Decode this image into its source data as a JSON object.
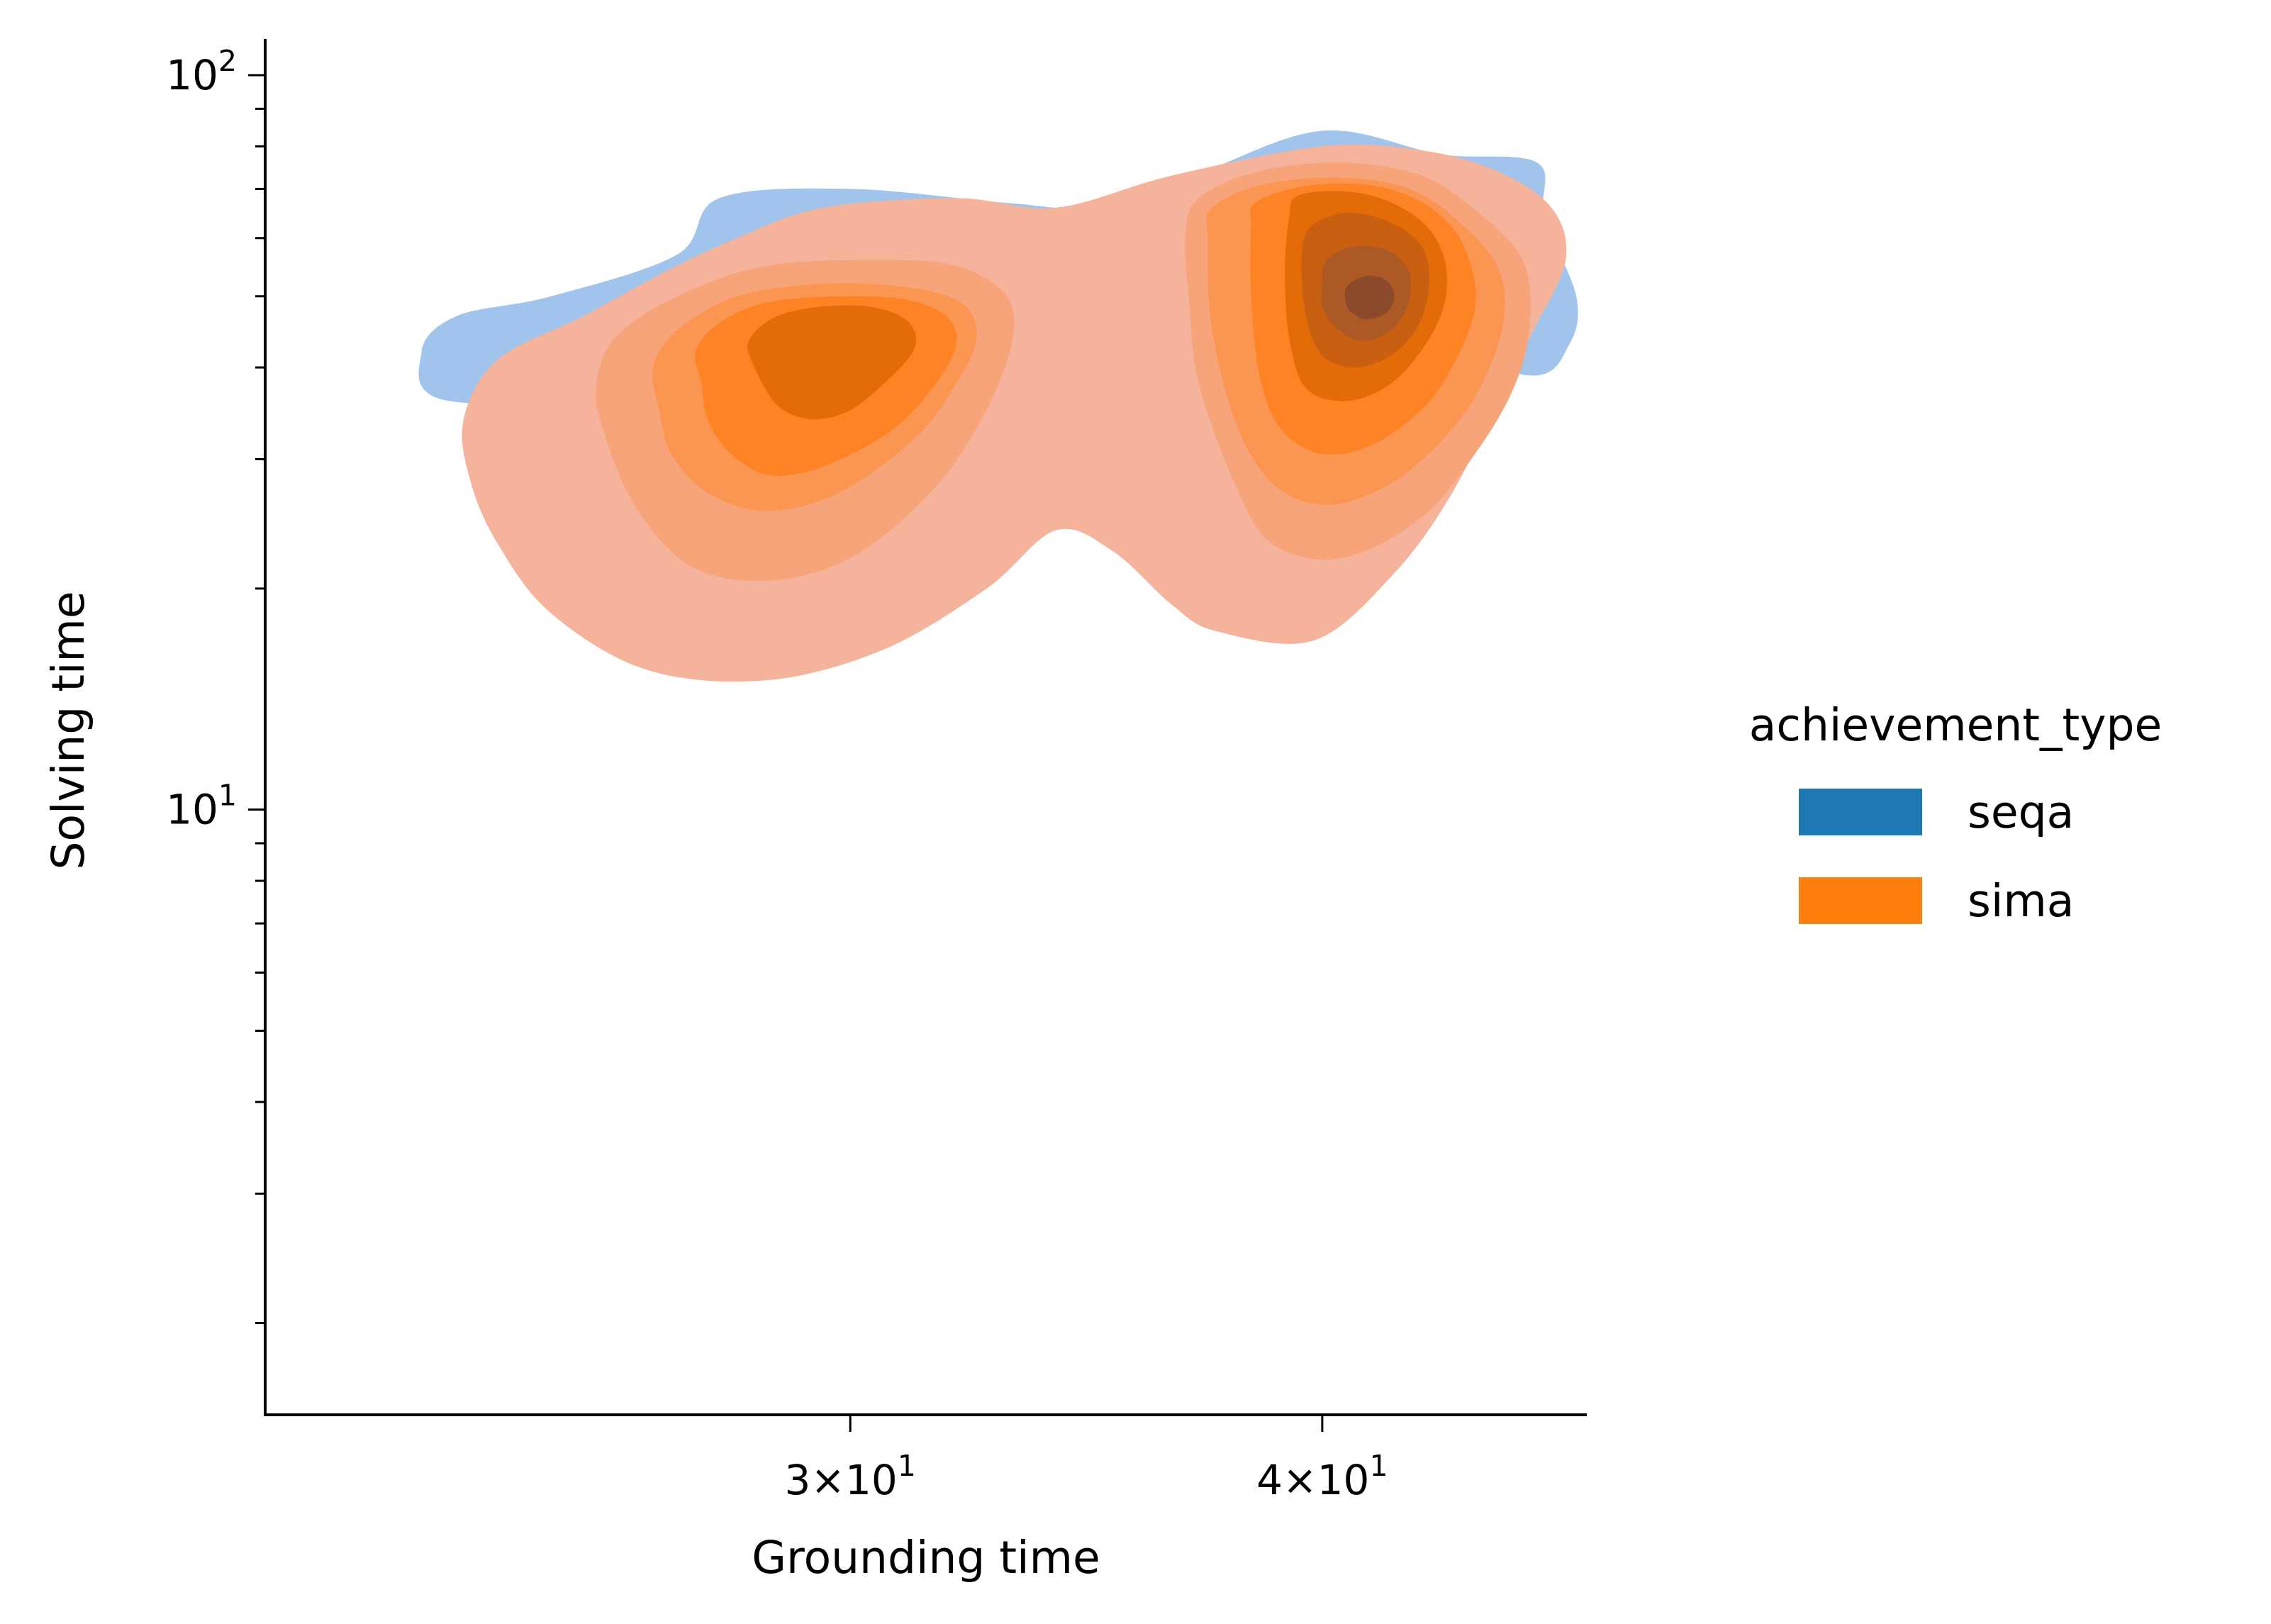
{
  "chart_data": {
    "type": "kde-contour",
    "xlabel": "Grounding time",
    "ylabel": "Solving time",
    "xscale": "log",
    "yscale": "log",
    "xlim": [
      21,
      47
    ],
    "ylim": [
      1.5,
      112
    ],
    "x_ticks": [
      {
        "value": 30,
        "mantissa": "3",
        "base": "10",
        "exp": "1"
      },
      {
        "value": 40,
        "mantissa": "4",
        "base": "10",
        "exp": "1"
      }
    ],
    "y_major_ticks": [
      {
        "value": 10,
        "base": "10",
        "exp": "1"
      },
      {
        "value": 100,
        "base": "10",
        "exp": "2"
      }
    ],
    "y_minor_ticks": [
      2,
      3,
      4,
      5,
      6,
      7,
      8,
      9,
      20,
      30,
      40,
      50,
      60,
      70,
      80,
      90
    ],
    "legend": {
      "title": "achievement_type",
      "placement": "right",
      "entries": [
        {
          "name": "seqa",
          "color": "#1f77b4"
        },
        {
          "name": "sima",
          "color": "#ff7f0e"
        }
      ]
    },
    "series": [
      {
        "name": "seqa",
        "fill_color": "#a1c4ec",
        "outer_contour": [
          [
            23.5,
            36
          ],
          [
            23.1,
            42
          ],
          [
            23.6,
            47
          ],
          [
            25,
            50
          ],
          [
            27,
            57
          ],
          [
            27.7,
            68
          ],
          [
            30,
            70
          ],
          [
            33,
            67
          ],
          [
            35,
            66
          ],
          [
            37,
            73
          ],
          [
            40,
            84
          ],
          [
            43,
            78
          ],
          [
            45.6,
            76
          ],
          [
            45.8,
            64
          ],
          [
            46.7,
            50
          ],
          [
            46.5,
            43
          ],
          [
            45.4,
            39
          ],
          [
            42,
            44
          ],
          [
            37,
            48
          ],
          [
            32,
            45
          ],
          [
            27,
            37
          ]
        ]
      },
      {
        "name": "sima",
        "levels": [
          {
            "fill_color": "#f4b39a",
            "islands": [
              [
                [
                  23.8,
                  28
                ],
                [
                  23.7,
                  34
                ],
                [
                  24.2,
                  41
                ],
                [
                  25.5,
                  47
                ],
                [
                  26.8,
                  54
                ],
                [
                  28,
                  60
                ],
                [
                  29.5,
                  66
                ],
                [
                  32,
                  68
                ],
                [
                  34,
                  66
                ],
                [
                  36.5,
                  73
                ],
                [
                  40,
                  80
                ],
                [
                  42.5,
                  79
                ],
                [
                  44.5,
                  74
                ],
                [
                  46,
                  66
                ],
                [
                  46.4,
                  56
                ],
                [
                  45.5,
                  45
                ],
                [
                  44.5,
                  36
                ],
                [
                  43.3,
                  27
                ],
                [
                  41.8,
                  21
                ],
                [
                  39.8,
                  17
                ],
                [
                  37.5,
                  17.5
                ],
                [
                  36.5,
                  19
                ],
                [
                  35.2,
                  22.5
                ],
                [
                  34,
                  24
                ],
                [
                  32.6,
                  20
                ],
                [
                  30.6,
                  16.5
                ],
                [
                  28.5,
                  15
                ],
                [
                  26.5,
                  15.5
                ],
                [
                  25,
                  18.5
                ],
                [
                  24.2,
                  23
                ]
              ]
            ]
          },
          {
            "fill_color": "#f8a47b",
            "islands": [
              [
                [
                  25.8,
                  33
                ],
                [
                  25.7,
                  38
                ],
                [
                  26,
                  44
                ],
                [
                  27,
                  50
                ],
                [
                  28.5,
                  55
                ],
                [
                  30.5,
                  56
                ],
                [
                  32,
                  55
                ],
                [
                  33,
                  50
                ],
                [
                  33.1,
                  43
                ],
                [
                  32.5,
                  34
                ],
                [
                  31.5,
                  27
                ],
                [
                  30,
                  22
                ],
                [
                  28.5,
                  20.5
                ],
                [
                  27.2,
                  21.5
                ],
                [
                  26.3,
                  26
                ]
              ],
              [
                [
                  36.8,
                  60
                ],
                [
                  37.1,
                  68
                ],
                [
                  38.5,
                  74
                ],
                [
                  40.5,
                  76
                ],
                [
                  42.5,
                  73
                ],
                [
                  44,
                  65
                ],
                [
                  45.2,
                  56
                ],
                [
                  45.4,
                  46
                ],
                [
                  45,
                  38
                ],
                [
                  44,
                  31
                ],
                [
                  42.5,
                  25
                ],
                [
                  40.5,
                  22
                ],
                [
                  38.8,
                  23
                ],
                [
                  37.9,
                  28
                ],
                [
                  37.1,
                  38
                ],
                [
                  36.9,
                  48
                ]
              ]
            ]
          },
          {
            "fill_color": "#fb9552",
            "islands": [
              [
                [
                  26.7,
                  35
                ],
                [
                  26.6,
                  40
                ],
                [
                  27,
                  45
                ],
                [
                  28,
                  50
                ],
                [
                  29.5,
                  52
                ],
                [
                  31,
                  51.5
                ],
                [
                  32.1,
                  49
                ],
                [
                  32.4,
                  44
                ],
                [
                  32,
                  38
                ],
                [
                  31.2,
                  32
                ],
                [
                  29.8,
                  27
                ],
                [
                  28.5,
                  25.5
                ],
                [
                  27.5,
                  27
                ],
                [
                  26.9,
                  30.5
                ]
              ],
              [
                [
                  37.3,
                  60
                ],
                [
                  37.4,
                  66
                ],
                [
                  38.6,
                  71
                ],
                [
                  40.5,
                  72.5
                ],
                [
                  42.2,
                  70
                ],
                [
                  43.5,
                  63
                ],
                [
                  44.5,
                  55
                ],
                [
                  44.7,
                  47
                ],
                [
                  44.2,
                  39
                ],
                [
                  43.3,
                  33
                ],
                [
                  41.8,
                  28
                ],
                [
                  40.2,
                  26
                ],
                [
                  38.9,
                  27.5
                ],
                [
                  38,
                  33
                ],
                [
                  37.4,
                  45
                ]
              ]
            ]
          },
          {
            "fill_color": "#fd8325",
            "islands": [
              [
                [
                  27.4,
                  38
                ],
                [
                  27.3,
                  42
                ],
                [
                  27.7,
                  46
                ],
                [
                  28.5,
                  49
                ],
                [
                  29.8,
                  50
                ],
                [
                  31,
                  49.5
                ],
                [
                  31.8,
                  47
                ],
                [
                  32,
                  43
                ],
                [
                  31.6,
                  38
                ],
                [
                  30.8,
                  33
                ],
                [
                  29.6,
                  29.5
                ],
                [
                  28.6,
                  28.5
                ],
                [
                  27.9,
                  30.5
                ],
                [
                  27.5,
                  34
                ]
              ],
              [
                [
                  38.3,
                  62
                ],
                [
                  38.4,
                  67
                ],
                [
                  39.5,
                  70.5
                ],
                [
                  41,
                  71
                ],
                [
                  42.3,
                  68
                ],
                [
                  43.3,
                  62
                ],
                [
                  43.8,
                  55
                ],
                [
                  43.9,
                  48
                ],
                [
                  43.4,
                  41
                ],
                [
                  42.6,
                  35.5
                ],
                [
                  41.3,
                  31.5
                ],
                [
                  40,
                  30.5
                ],
                [
                  39,
                  33
                ],
                [
                  38.5,
                  39
                ],
                [
                  38.3,
                  50
                ]
              ]
            ]
          },
          {
            "fill_color": "#e36c08",
            "islands": [
              [
                [
                  28.3,
                  40
                ],
                [
                  28.2,
                  43.5
                ],
                [
                  28.7,
                  47
                ],
                [
                  29.6,
                  48.5
                ],
                [
                  30.5,
                  48.2
                ],
                [
                  31.1,
                  46
                ],
                [
                  31.2,
                  42.5
                ],
                [
                  30.7,
                  38.5
                ],
                [
                  30,
                  35
                ],
                [
                  29.3,
                  34
                ],
                [
                  28.7,
                  35.5
                ]
              ],
              [
                [
                  39.2,
                  64
                ],
                [
                  39.4,
                  68.5
                ],
                [
                  40.5,
                  69.5
                ],
                [
                  41.6,
                  67.5
                ],
                [
                  42.6,
                  62.5
                ],
                [
                  43.1,
                  56
                ],
                [
                  43.1,
                  49
                ],
                [
                  42.6,
                  43
                ],
                [
                  41.7,
                  38
                ],
                [
                  40.6,
                  36
                ],
                [
                  39.6,
                  37.5
                ],
                [
                  39.2,
                  44
                ],
                [
                  39.1,
                  54
                ]
              ]
            ]
          },
          {
            "fill_color": "#c96011",
            "islands": [
              [
                [
                  39.5,
                  56
                ],
                [
                  39.7,
                  62
                ],
                [
                  40.6,
                  65
                ],
                [
                  41.7,
                  63
                ],
                [
                  42.5,
                  58.5
                ],
                [
                  42.7,
                  52
                ],
                [
                  42.4,
                  45.5
                ],
                [
                  41.7,
                  41.5
                ],
                [
                  40.8,
                  40
                ],
                [
                  40,
                  41.5
                ],
                [
                  39.6,
                  47
                ]
              ]
            ]
          },
          {
            "fill_color": "#ad5926",
            "islands": [
              [
                [
                  40,
                  52
                ],
                [
                  40.1,
                  56
                ],
                [
                  40.8,
                  58.5
                ],
                [
                  41.7,
                  57.5
                ],
                [
                  42.2,
                  53.5
                ],
                [
                  42.1,
                  48
                ],
                [
                  41.6,
                  44.5
                ],
                [
                  40.9,
                  43.5
                ],
                [
                  40.3,
                  45.5
                ],
                [
                  40,
                  48.5
                ]
              ]
            ]
          },
          {
            "fill_color": "#8c4a2d",
            "islands": [
              [
                [
                  40.6,
                  48.5
                ],
                [
                  40.6,
                  51.5
                ],
                [
                  41.1,
                  53.3
                ],
                [
                  41.6,
                  52.5
                ],
                [
                  41.8,
                  50
                ],
                [
                  41.6,
                  47.5
                ],
                [
                  41.1,
                  46.5
                ],
                [
                  40.8,
                  47.2
                ]
              ]
            ]
          }
        ]
      }
    ]
  }
}
